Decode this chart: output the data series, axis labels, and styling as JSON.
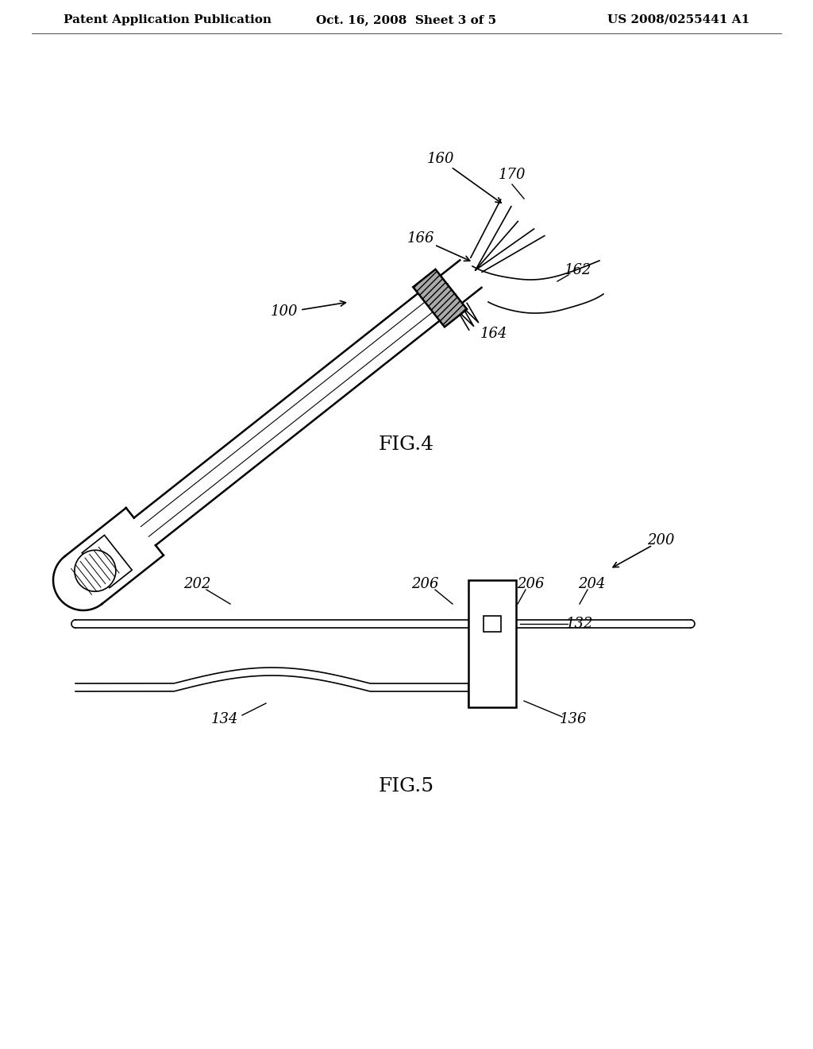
{
  "background_color": "#ffffff",
  "header_left": "Patent Application Publication",
  "header_center": "Oct. 16, 2008  Sheet 3 of 5",
  "header_right": "US 2008/0255441 A1",
  "header_fontsize": 11,
  "fig4_label": "FIG.4",
  "fig5_label": "FIG.5",
  "label_fontsize": 16,
  "annotation_fontsize": 13
}
